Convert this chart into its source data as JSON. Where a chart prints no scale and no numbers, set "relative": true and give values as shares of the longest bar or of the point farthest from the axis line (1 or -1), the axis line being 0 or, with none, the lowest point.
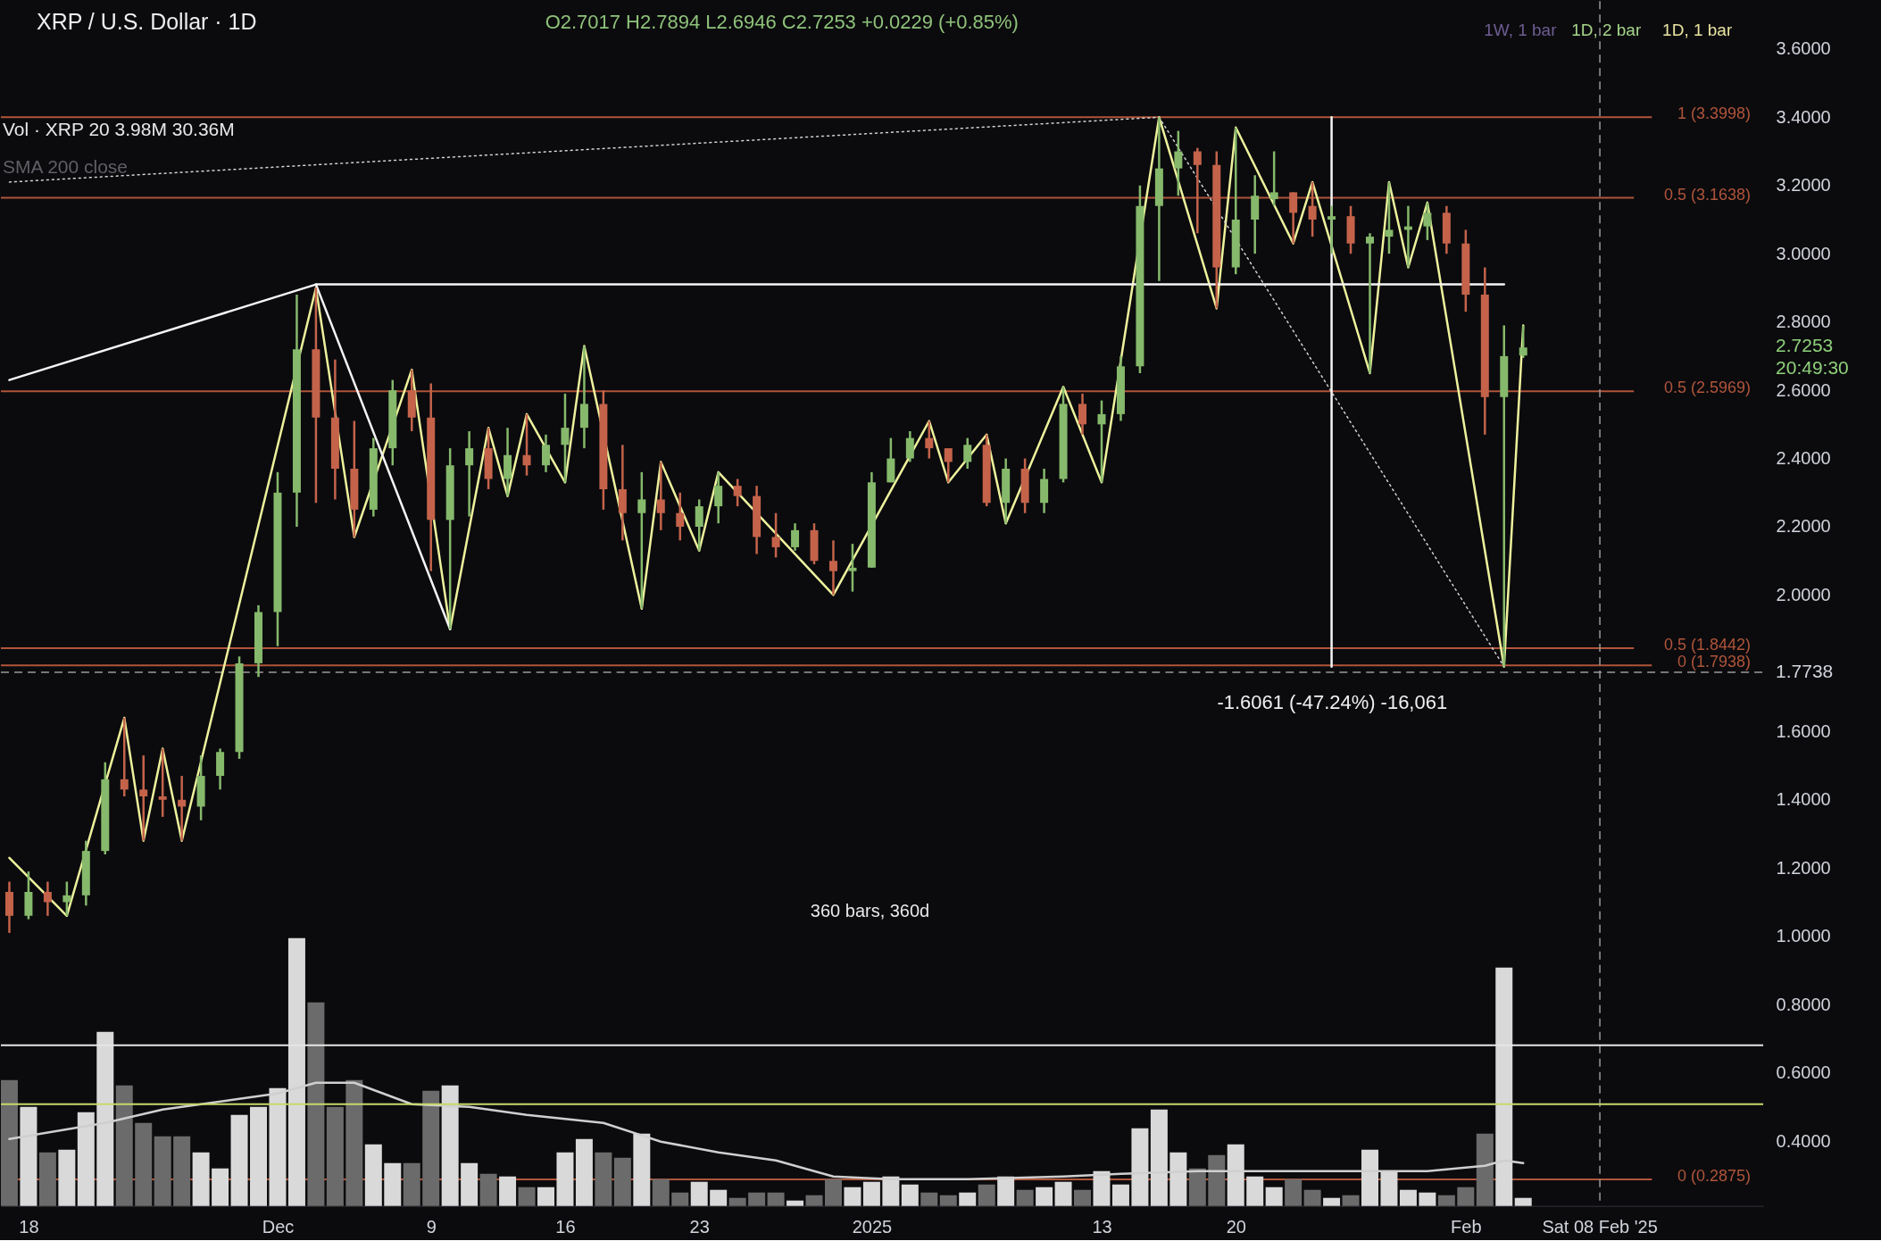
{
  "chart_data": [
    {
      "type": "candlestick",
      "title": "XRP / U.S. Dollar · 1D",
      "subtitle": "O2.7017 H2.7894 L2.6946 C2.7253 +0.0229 (+0.85%)",
      "tick_labels": "y",
      "x": [
        "2024-11-17",
        "2024-11-18",
        "2024-11-19",
        "2024-11-20",
        "2024-11-21",
        "2024-11-22",
        "2024-11-23",
        "2024-11-24",
        "2024-11-25",
        "2024-11-26",
        "2024-11-27",
        "2024-11-28",
        "2024-11-29",
        "2024-11-30",
        "2024-12-01",
        "2024-12-02",
        "2024-12-03",
        "2024-12-04",
        "2024-12-05",
        "2024-12-06",
        "2024-12-07",
        "2024-12-08",
        "2024-12-09",
        "2024-12-10",
        "2024-12-11",
        "2024-12-12",
        "2024-12-13",
        "2024-12-14",
        "2024-12-15",
        "2024-12-16",
        "2024-12-17",
        "2024-12-18",
        "2024-12-19",
        "2024-12-20",
        "2024-12-21",
        "2024-12-22",
        "2024-12-23",
        "2024-12-24",
        "2024-12-25",
        "2024-12-26",
        "2024-12-27",
        "2024-12-28",
        "2024-12-29",
        "2024-12-30",
        "2024-12-31",
        "2025-01-01",
        "2025-01-02",
        "2025-01-03",
        "2025-01-04",
        "2025-01-05",
        "2025-01-06",
        "2025-01-07",
        "2025-01-08",
        "2025-01-09",
        "2025-01-10",
        "2025-01-11",
        "2025-01-12",
        "2025-01-13",
        "2025-01-14",
        "2025-01-15",
        "2025-01-16",
        "2025-01-17",
        "2025-01-18",
        "2025-01-19",
        "2025-01-20",
        "2025-01-21",
        "2025-01-22",
        "2025-01-23",
        "2025-01-24",
        "2025-01-25",
        "2025-01-26",
        "2025-01-27",
        "2025-01-28",
        "2025-01-29",
        "2025-01-30",
        "2025-01-31",
        "2025-02-01",
        "2025-02-02",
        "2025-02-03",
        "2025-02-04"
      ],
      "ohlc": [
        [
          1.13,
          1.16,
          1.01,
          1.06
        ],
        [
          1.06,
          1.19,
          1.05,
          1.13
        ],
        [
          1.13,
          1.16,
          1.06,
          1.1
        ],
        [
          1.1,
          1.16,
          1.06,
          1.12
        ],
        [
          1.12,
          1.28,
          1.09,
          1.25
        ],
        [
          1.25,
          1.51,
          1.24,
          1.46
        ],
        [
          1.46,
          1.64,
          1.41,
          1.43
        ],
        [
          1.43,
          1.53,
          1.28,
          1.41
        ],
        [
          1.41,
          1.55,
          1.35,
          1.4
        ],
        [
          1.4,
          1.47,
          1.28,
          1.38
        ],
        [
          1.38,
          1.53,
          1.34,
          1.47
        ],
        [
          1.47,
          1.55,
          1.43,
          1.54
        ],
        [
          1.54,
          1.82,
          1.52,
          1.8
        ],
        [
          1.8,
          1.97,
          1.76,
          1.95
        ],
        [
          1.95,
          2.36,
          1.85,
          2.3
        ],
        [
          2.3,
          2.88,
          2.2,
          2.72
        ],
        [
          2.72,
          2.9,
          2.27,
          2.52
        ],
        [
          2.52,
          2.69,
          2.28,
          2.37
        ],
        [
          2.37,
          2.51,
          2.17,
          2.25
        ],
        [
          2.25,
          2.46,
          2.23,
          2.43
        ],
        [
          2.43,
          2.63,
          2.38,
          2.6
        ],
        [
          2.6,
          2.66,
          2.48,
          2.52
        ],
        [
          2.52,
          2.62,
          2.07,
          2.22
        ],
        [
          2.22,
          2.43,
          1.9,
          2.38
        ],
        [
          2.38,
          2.48,
          2.23,
          2.43
        ],
        [
          2.43,
          2.49,
          2.31,
          2.34
        ],
        [
          2.34,
          2.49,
          2.29,
          2.41
        ],
        [
          2.41,
          2.53,
          2.35,
          2.38
        ],
        [
          2.38,
          2.47,
          2.36,
          2.44
        ],
        [
          2.44,
          2.59,
          2.33,
          2.49
        ],
        [
          2.49,
          2.73,
          2.43,
          2.56
        ],
        [
          2.56,
          2.6,
          2.25,
          2.31
        ],
        [
          2.31,
          2.44,
          2.16,
          2.24
        ],
        [
          2.24,
          2.36,
          1.96,
          2.28
        ],
        [
          2.28,
          2.39,
          2.19,
          2.24
        ],
        [
          2.24,
          2.3,
          2.16,
          2.2
        ],
        [
          2.2,
          2.28,
          2.13,
          2.26
        ],
        [
          2.26,
          2.36,
          2.21,
          2.32
        ],
        [
          2.32,
          2.34,
          2.26,
          2.29
        ],
        [
          2.29,
          2.32,
          2.12,
          2.17
        ],
        [
          2.17,
          2.24,
          2.11,
          2.14
        ],
        [
          2.14,
          2.21,
          2.13,
          2.19
        ],
        [
          2.19,
          2.21,
          2.09,
          2.1
        ],
        [
          2.1,
          2.16,
          2.0,
          2.07
        ],
        [
          2.07,
          2.15,
          2.01,
          2.08
        ],
        [
          2.08,
          2.36,
          2.08,
          2.33
        ],
        [
          2.33,
          2.46,
          2.33,
          2.4
        ],
        [
          2.4,
          2.48,
          2.39,
          2.46
        ],
        [
          2.46,
          2.51,
          2.4,
          2.43
        ],
        [
          2.43,
          2.43,
          2.33,
          2.39
        ],
        [
          2.39,
          2.46,
          2.37,
          2.44
        ],
        [
          2.44,
          2.47,
          2.26,
          2.27
        ],
        [
          2.27,
          2.4,
          2.21,
          2.37
        ],
        [
          2.37,
          2.4,
          2.24,
          2.27
        ],
        [
          2.27,
          2.37,
          2.24,
          2.34
        ],
        [
          2.34,
          2.61,
          2.33,
          2.56
        ],
        [
          2.56,
          2.59,
          2.47,
          2.5
        ],
        [
          2.5,
          2.57,
          2.33,
          2.53
        ],
        [
          2.53,
          2.7,
          2.51,
          2.67
        ],
        [
          2.67,
          3.2,
          2.65,
          3.14
        ],
        [
          3.14,
          3.4,
          2.92,
          3.25
        ],
        [
          3.25,
          3.36,
          3.17,
          3.3
        ],
        [
          3.3,
          3.31,
          3.06,
          3.26
        ],
        [
          3.26,
          3.3,
          2.84,
          2.96
        ],
        [
          2.96,
          3.37,
          2.94,
          3.1
        ],
        [
          3.1,
          3.23,
          3.0,
          3.17
        ],
        [
          3.16,
          3.3,
          3.14,
          3.18
        ],
        [
          3.18,
          3.18,
          3.03,
          3.12
        ],
        [
          3.14,
          3.21,
          3.05,
          3.1
        ],
        [
          3.1,
          3.14,
          3.0,
          3.11
        ],
        [
          3.11,
          3.14,
          3.0,
          3.03
        ],
        [
          3.03,
          3.06,
          2.65,
          3.05
        ],
        [
          3.05,
          3.21,
          3.0,
          3.07
        ],
        [
          3.07,
          3.14,
          2.96,
          3.08
        ],
        [
          3.08,
          3.15,
          3.04,
          3.12
        ],
        [
          3.12,
          3.14,
          3.0,
          3.03
        ],
        [
          3.03,
          3.07,
          2.83,
          2.88
        ],
        [
          2.88,
          2.96,
          2.47,
          2.58
        ],
        [
          2.58,
          2.79,
          1.79,
          2.7
        ],
        [
          2.7017,
          2.7894,
          2.6946,
          2.7253
        ]
      ],
      "colors": [
        "#c4634a",
        "#86b96b",
        "#c4634a",
        "#86b96b",
        "#86b96b",
        "#86b96b",
        "#c4634a",
        "#c4634a",
        "#c4634a",
        "#c4634a",
        "#86b96b",
        "#86b96b",
        "#86b96b",
        "#86b96b",
        "#86b96b",
        "#86b96b",
        "#c4634a",
        "#c4634a",
        "#c4634a",
        "#86b96b",
        "#86b96b",
        "#c4634a",
        "#c4634a",
        "#86b96b",
        "#86b96b",
        "#c4634a",
        "#86b96b",
        "#c4634a",
        "#86b96b",
        "#86b96b",
        "#86b96b",
        "#c4634a",
        "#c4634a",
        "#86b96b",
        "#c4634a",
        "#c4634a",
        "#86b96b",
        "#86b96b",
        "#c4634a",
        "#c4634a",
        "#c4634a",
        "#86b96b",
        "#c4634a",
        "#c4634a",
        "#86b96b",
        "#86b96b",
        "#86b96b",
        "#86b96b",
        "#c4634a",
        "#c4634a",
        "#86b96b",
        "#c4634a",
        "#86b96b",
        "#c4634a",
        "#86b96b",
        "#86b96b",
        "#c4634a",
        "#86b96b",
        "#86b96b",
        "#86b96b",
        "#86b96b",
        "#86b96b",
        "#c4634a",
        "#c4634a",
        "#86b96b",
        "#86b96b",
        "#86b96b",
        "#c4634a",
        "#c4634a",
        "#86b96b",
        "#c4634a",
        "#86b96b",
        "#86b96b",
        "#86b96b",
        "#86b96b",
        "#c4634a",
        "#c4634a",
        "#c4634a",
        "#86b96b",
        "#86b96b"
      ],
      "series": [
        {
          "type": "line",
          "color": "#eef29c",
          "x": [
            "2024-11-17",
            "2024-11-20",
            "2024-11-23",
            "2024-11-24",
            "2024-11-25",
            "2024-11-26",
            "2024-12-03",
            "2024-12-05",
            "2024-12-08",
            "2024-12-10",
            "2024-12-12",
            "2024-12-13",
            "2024-12-14",
            "2024-12-16",
            "2024-12-17",
            "2024-12-20",
            "2024-12-21",
            "2024-12-23",
            "2024-12-24",
            "2024-12-30",
            "2025-01-04",
            "2025-01-05",
            "2025-01-07",
            "2025-01-08",
            "2025-01-11",
            "2025-01-13",
            "2025-01-16",
            "2025-01-19",
            "2025-01-20",
            "2025-01-23",
            "2025-01-24",
            "2025-01-27",
            "2025-01-28",
            "2025-01-29",
            "2025-01-30",
            "2025-02-03",
            "2025-02-04"
          ],
          "values": [
            1.23,
            1.06,
            1.64,
            1.28,
            1.55,
            1.28,
            2.9,
            2.17,
            2.66,
            1.9,
            2.49,
            2.29,
            2.53,
            2.33,
            2.73,
            1.96,
            2.39,
            2.13,
            2.36,
            2.0,
            2.51,
            2.33,
            2.47,
            2.21,
            2.61,
            2.33,
            3.4,
            2.84,
            3.37,
            3.03,
            3.21,
            2.65,
            3.21,
            2.96,
            3.15,
            1.79,
            2.79
          ]
        },
        {
          "type": "line",
          "color": "#f5f5f5",
          "x": [
            "2024-11-17",
            "2024-12-03",
            "2024-12-10"
          ],
          "values": [
            2.63,
            2.91,
            1.9
          ]
        },
        {
          "type": "line",
          "color": "#f5f5f5",
          "x": [
            "2024-12-03",
            "2025-02-03"
          ],
          "values": [
            2.91,
            2.91
          ]
        },
        {
          "type": "line",
          "color": "#d0d0d0",
          "line_style": "dotted",
          "x": [
            "2024-11-17",
            "2025-01-16"
          ],
          "values": [
            3.21,
            3.4
          ]
        },
        {
          "type": "line",
          "color": "#d0d0d0",
          "line_style": "dotted",
          "x": [
            "2025-01-16",
            "2025-02-03"
          ],
          "values": [
            3.4,
            1.79
          ]
        },
        {
          "type": "line",
          "color": "#f5f5f5",
          "x": [
            "2025-01-25",
            "2025-01-25"
          ],
          "values": [
            3.4,
            1.79
          ]
        }
      ],
      "ref_lines": [
        {
          "axis": "y",
          "value": 3.3998,
          "label": "1 (3.3998)",
          "color": "#b0553a"
        },
        {
          "axis": "y",
          "value": 3.1638,
          "label": "0.5 (3.1638)",
          "color": "#b0553a"
        },
        {
          "axis": "y",
          "value": 2.5969,
          "label": "0.5 (2.5969)",
          "color": "#b0553a"
        },
        {
          "axis": "y",
          "value": 1.8442,
          "label": "0.5 (1.8442)",
          "color": "#b0553a"
        },
        {
          "axis": "y",
          "value": 1.7938,
          "label": "0 (1.7938)",
          "color": "#b0553a"
        },
        {
          "axis": "y",
          "value": 0.2875,
          "label": "0 (0.2875)",
          "color": "#b0553a"
        },
        {
          "axis": "y",
          "value": 1.7738,
          "label": "1.7738",
          "color": "#9a9a9a",
          "line_style": "dashed"
        },
        {
          "axis": "x",
          "value": "2025-02-08",
          "label": "Sat 08 Feb '25",
          "color": "#9a9a9a",
          "line_style": "dashed"
        }
      ],
      "annotations": [
        "Vol · XRP 20 3.98M 30.36M",
        "SMA 200 close",
        "360 bars, 360d",
        "-1.6061 (-47.24%) -16,061",
        "2.7253",
        "20:49:30",
        "1W, 1 bar",
        "1D, 2 bar",
        "1D, 1 bar"
      ],
      "xlim": [
        "2024-11-16T19:00",
        "2025-02-16T07:00"
      ],
      "ylim": [
        0.21,
        3.74
      ],
      "yticks": [
        {
          "value": 0.4,
          "label": "0.4000"
        },
        {
          "value": 0.6,
          "label": "0.6000"
        },
        {
          "value": 0.8,
          "label": "0.8000"
        },
        {
          "value": 1.0,
          "label": "1.0000"
        },
        {
          "value": 1.2,
          "label": "1.2000"
        },
        {
          "value": 1.4,
          "label": "1.4000"
        },
        {
          "value": 1.6,
          "label": "1.6000"
        },
        {
          "value": 2.0,
          "label": "2.0000"
        },
        {
          "value": 2.2,
          "label": "2.2000"
        },
        {
          "value": 2.4,
          "label": "2.4000"
        },
        {
          "value": 2.6,
          "label": "2.6000"
        },
        {
          "value": 2.8,
          "label": "2.8000"
        },
        {
          "value": 3.0,
          "label": "3.0000"
        },
        {
          "value": 3.2,
          "label": "3.2000"
        },
        {
          "value": 3.4,
          "label": "3.4000"
        },
        {
          "value": 3.6,
          "label": "3.6000"
        }
      ],
      "grid": false
    },
    {
      "type": "bar",
      "relative": true,
      "tick_labels": "x",
      "x": [
        "2024-11-17",
        "2024-11-18",
        "2024-11-19",
        "2024-11-20",
        "2024-11-21",
        "2024-11-22",
        "2024-11-23",
        "2024-11-24",
        "2024-11-25",
        "2024-11-26",
        "2024-11-27",
        "2024-11-28",
        "2024-11-29",
        "2024-11-30",
        "2024-12-01",
        "2024-12-02",
        "2024-12-03",
        "2024-12-04",
        "2024-12-05",
        "2024-12-06",
        "2024-12-07",
        "2024-12-08",
        "2024-12-09",
        "2024-12-10",
        "2024-12-11",
        "2024-12-12",
        "2024-12-13",
        "2024-12-14",
        "2024-12-15",
        "2024-12-16",
        "2024-12-17",
        "2024-12-18",
        "2024-12-19",
        "2024-12-20",
        "2024-12-21",
        "2024-12-22",
        "2024-12-23",
        "2024-12-24",
        "2024-12-25",
        "2024-12-26",
        "2024-12-27",
        "2024-12-28",
        "2024-12-29",
        "2024-12-30",
        "2024-12-31",
        "2025-01-01",
        "2025-01-02",
        "2025-01-03",
        "2025-01-04",
        "2025-01-05",
        "2025-01-06",
        "2025-01-07",
        "2025-01-08",
        "2025-01-09",
        "2025-01-10",
        "2025-01-11",
        "2025-01-12",
        "2025-01-13",
        "2025-01-14",
        "2025-01-15",
        "2025-01-16",
        "2025-01-17",
        "2025-01-18",
        "2025-01-19",
        "2025-01-20",
        "2025-01-21",
        "2025-01-22",
        "2025-01-23",
        "2025-01-24",
        "2025-01-25",
        "2025-01-26",
        "2025-01-27",
        "2025-01-28",
        "2025-01-29",
        "2025-01-30",
        "2025-01-31",
        "2025-02-01",
        "2025-02-02",
        "2025-02-03",
        "2025-02-04"
      ],
      "series": [
        {
          "type": "bar",
          "values": [
            0.47,
            0.37,
            0.2,
            0.21,
            0.35,
            0.65,
            0.45,
            0.31,
            0.26,
            0.26,
            0.2,
            0.14,
            0.34,
            0.37,
            0.44,
            1,
            0.76,
            0.37,
            0.47,
            0.23,
            0.16,
            0.16,
            0.43,
            0.45,
            0.16,
            0.12,
            0.11,
            0.07,
            0.07,
            0.2,
            0.25,
            0.2,
            0.18,
            0.27,
            0.1,
            0.05,
            0.09,
            0.06,
            0.03,
            0.05,
            0.05,
            0.02,
            0.04,
            0.1,
            0.07,
            0.09,
            0.11,
            0.08,
            0.05,
            0.04,
            0.05,
            0.08,
            0.11,
            0.06,
            0.07,
            0.09,
            0.06,
            0.13,
            0.08,
            0.29,
            0.36,
            0.2,
            0.14,
            0.19,
            0.23,
            0.11,
            0.07,
            0.1,
            0.06,
            0.03,
            0.04,
            0.21,
            0.13,
            0.06,
            0.05,
            0.04,
            0.07,
            0.27,
            0.89,
            0.03
          ],
          "colors": [
            "#6b6b6b",
            "#d9d9d9",
            "#6b6b6b",
            "#d9d9d9",
            "#d9d9d9",
            "#d9d9d9",
            "#6b6b6b",
            "#6b6b6b",
            "#6b6b6b",
            "#6b6b6b",
            "#d9d9d9",
            "#d9d9d9",
            "#d9d9d9",
            "#d9d9d9",
            "#d9d9d9",
            "#d9d9d9",
            "#6b6b6b",
            "#6b6b6b",
            "#6b6b6b",
            "#d9d9d9",
            "#d9d9d9",
            "#6b6b6b",
            "#6b6b6b",
            "#d9d9d9",
            "#d9d9d9",
            "#6b6b6b",
            "#d9d9d9",
            "#6b6b6b",
            "#d9d9d9",
            "#d9d9d9",
            "#d9d9d9",
            "#6b6b6b",
            "#6b6b6b",
            "#d9d9d9",
            "#6b6b6b",
            "#6b6b6b",
            "#d9d9d9",
            "#d9d9d9",
            "#6b6b6b",
            "#6b6b6b",
            "#6b6b6b",
            "#d9d9d9",
            "#6b6b6b",
            "#6b6b6b",
            "#d9d9d9",
            "#d9d9d9",
            "#d9d9d9",
            "#d9d9d9",
            "#6b6b6b",
            "#6b6b6b",
            "#d9d9d9",
            "#6b6b6b",
            "#d9d9d9",
            "#6b6b6b",
            "#d9d9d9",
            "#d9d9d9",
            "#6b6b6b",
            "#d9d9d9",
            "#d9d9d9",
            "#d9d9d9",
            "#d9d9d9",
            "#d9d9d9",
            "#6b6b6b",
            "#6b6b6b",
            "#d9d9d9",
            "#d9d9d9",
            "#d9d9d9",
            "#6b6b6b",
            "#6b6b6b",
            "#d9d9d9",
            "#6b6b6b",
            "#d9d9d9",
            "#d9d9d9",
            "#d9d9d9",
            "#d9d9d9",
            "#6b6b6b",
            "#6b6b6b",
            "#6b6b6b",
            "#d9d9d9",
            "#d9d9d9"
          ]
        },
        {
          "type": "line",
          "color": "#cfcfcf",
          "x": [
            "2024-11-17",
            "2024-11-22",
            "2024-11-25",
            "2024-11-29",
            "2024-12-01",
            "2024-12-03",
            "2024-12-05",
            "2024-12-08",
            "2024-12-11",
            "2024-12-14",
            "2024-12-18",
            "2024-12-21",
            "2024-12-24",
            "2024-12-27",
            "2024-12-30",
            "2025-01-02",
            "2025-01-06",
            "2025-01-11",
            "2025-01-14",
            "2025-01-18",
            "2025-01-22",
            "2025-01-26",
            "2025-01-30",
            "2025-02-02",
            "2025-02-03",
            "2025-02-04"
          ],
          "values": [
            0.25,
            0.31,
            0.36,
            0.4,
            0.42,
            0.46,
            0.46,
            0.38,
            0.37,
            0.34,
            0.31,
            0.24,
            0.2,
            0.17,
            0.11,
            0.1,
            0.1,
            0.11,
            0.12,
            0.13,
            0.13,
            0.13,
            0.13,
            0.15,
            0.17,
            0.16
          ]
        }
      ],
      "ref_lines": [
        {
          "axis": "y",
          "value": 0.6,
          "color": "#e6e6e6"
        },
        {
          "axis": "y",
          "value": 0.38,
          "color": "#c8d96a"
        }
      ],
      "xlim": [
        "2024-11-16T19:00",
        "2025-02-16T07:00"
      ],
      "xticks": [
        {
          "value": "2024-11-18",
          "label": "18"
        },
        {
          "value": "2024-12-01",
          "label": "Dec"
        },
        {
          "value": "2024-12-09",
          "label": "9"
        },
        {
          "value": "2024-12-16",
          "label": "16"
        },
        {
          "value": "2024-12-23",
          "label": "23"
        },
        {
          "value": "2025-01-01",
          "label": "2025"
        },
        {
          "value": "2025-01-13",
          "label": "13"
        },
        {
          "value": "2025-01-20",
          "label": "20"
        },
        {
          "value": "2025-02-01",
          "label": "Feb"
        }
      ]
    }
  ]
}
